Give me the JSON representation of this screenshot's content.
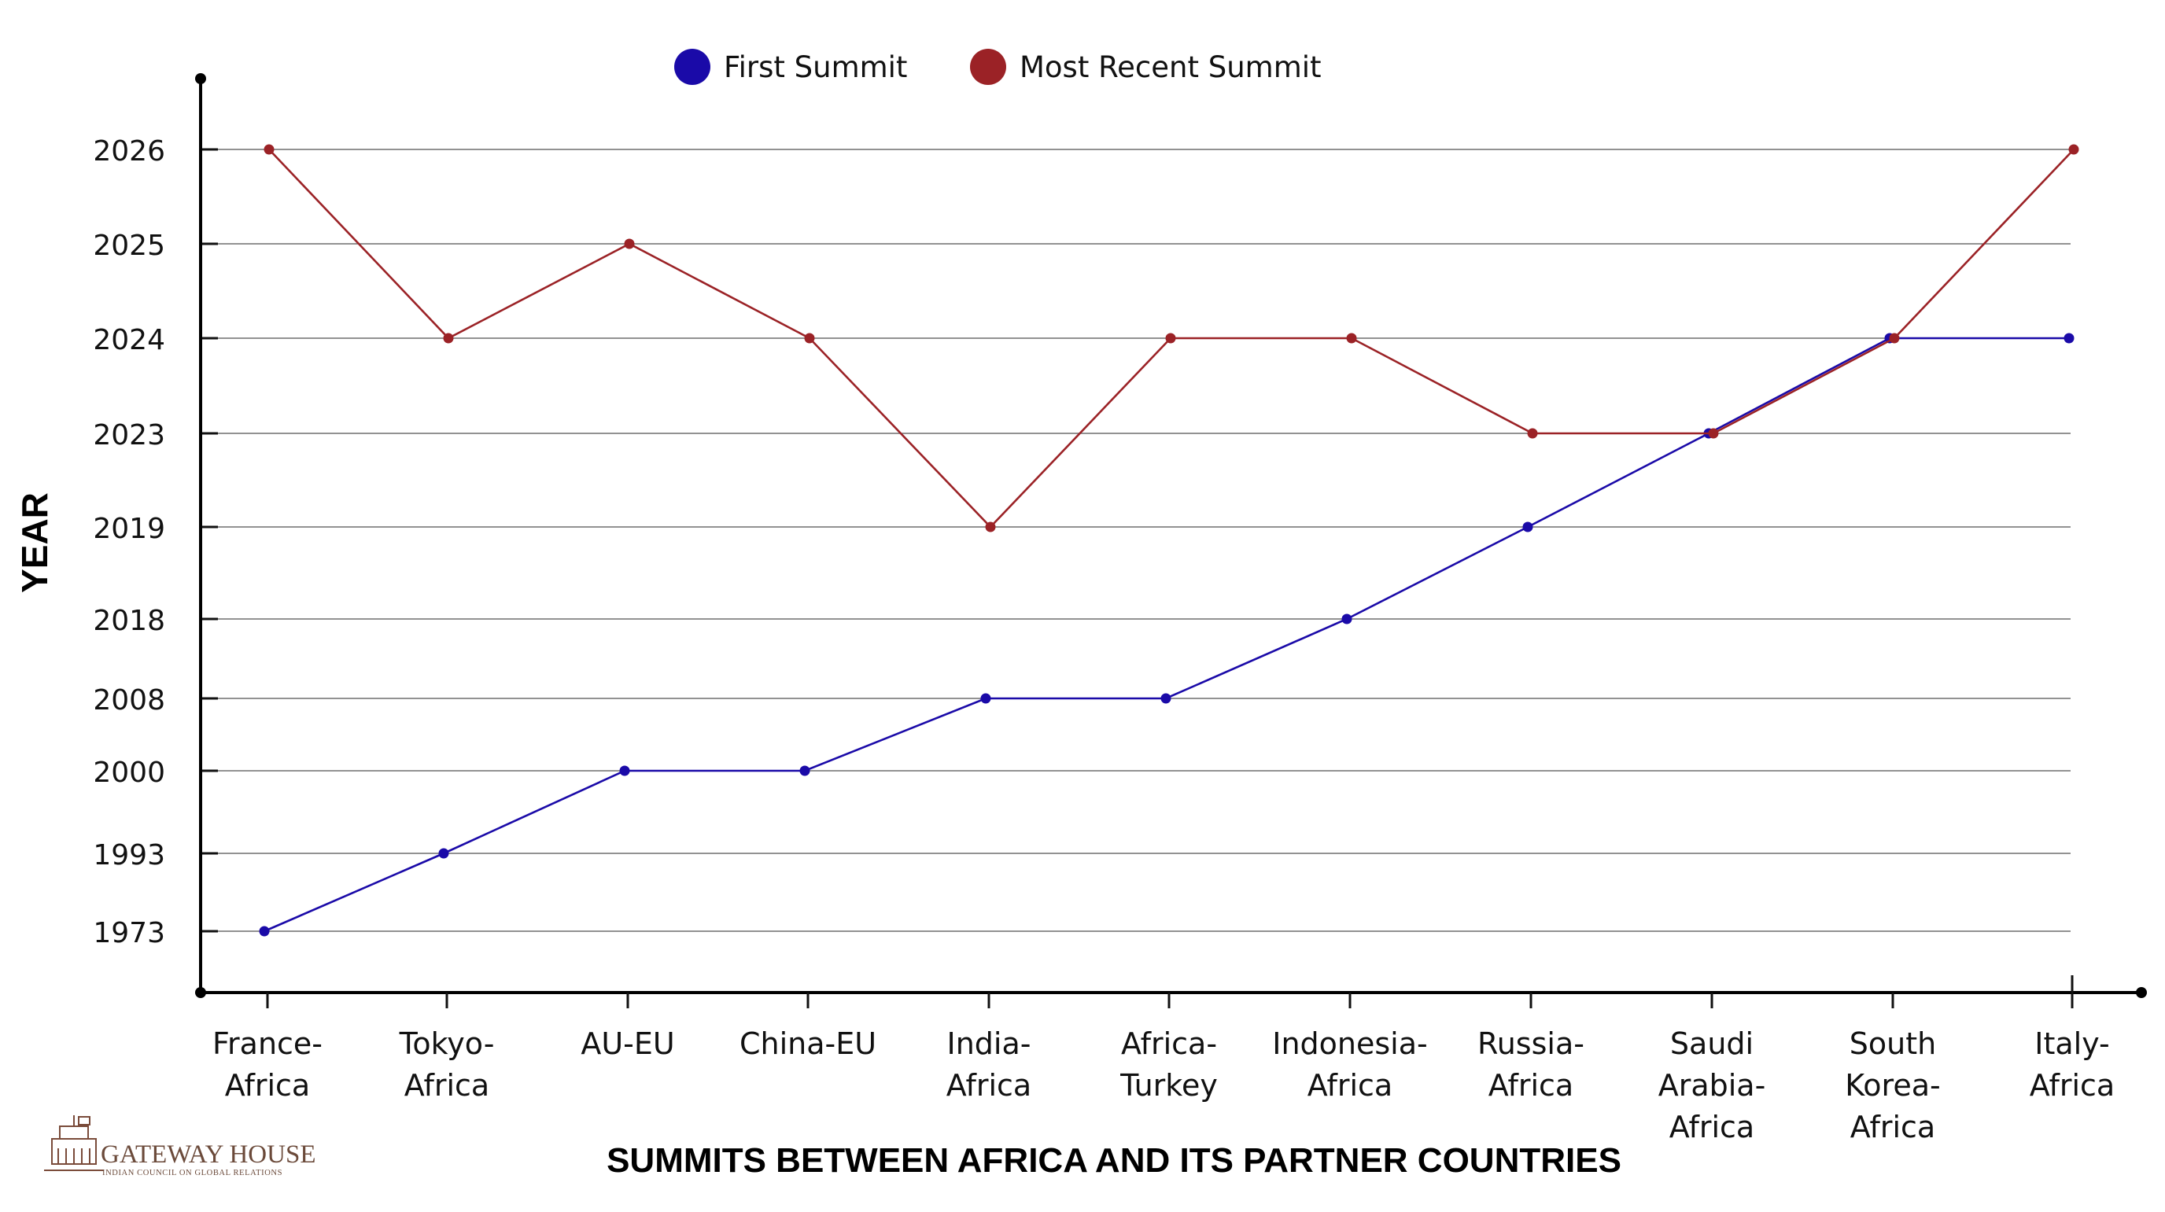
{
  "chart_data": {
    "type": "line",
    "title": "",
    "xlabel": "SUMMITS BETWEEN AFRICA AND ITS PARTNER COUNTRIES",
    "ylabel": "YEAR",
    "y_scale": "categorical",
    "y_ticks": [
      "1973",
      "1993",
      "2000",
      "2008",
      "2018",
      "2019",
      "2023",
      "2024",
      "2025",
      "2026"
    ],
    "categories": [
      [
        "France-",
        "Africa"
      ],
      [
        "Tokyo-",
        "Africa"
      ],
      [
        "AU-EU"
      ],
      [
        "China-EU"
      ],
      [
        "India-",
        "Africa"
      ],
      [
        "Africa-",
        "Turkey"
      ],
      [
        "Indonesia-",
        "Africa"
      ],
      [
        "Russia-",
        "Africa"
      ],
      [
        "Saudi",
        "Arabia-",
        "Africa"
      ],
      [
        "South",
        "Korea-",
        "Africa"
      ],
      [
        "Italy-",
        "Africa"
      ]
    ],
    "series": [
      {
        "name": "First Summit",
        "color": "#1a0aa8",
        "values": [
          1973,
          1993,
          2000,
          2000,
          2008,
          2008,
          2018,
          2019,
          2023,
          2024,
          2024
        ]
      },
      {
        "name": "Most Recent Summit",
        "color": "#9b2226",
        "values": [
          2026,
          2024,
          2025,
          2024,
          2019,
          2024,
          2024,
          2023,
          2023,
          2024,
          2026
        ]
      }
    ],
    "grid": true,
    "legend_position": "top-center"
  },
  "logo": {
    "name": "GATEWAY HOUSE",
    "tagline": "INDIAN COUNCIL ON GLOBAL RELATIONS"
  }
}
